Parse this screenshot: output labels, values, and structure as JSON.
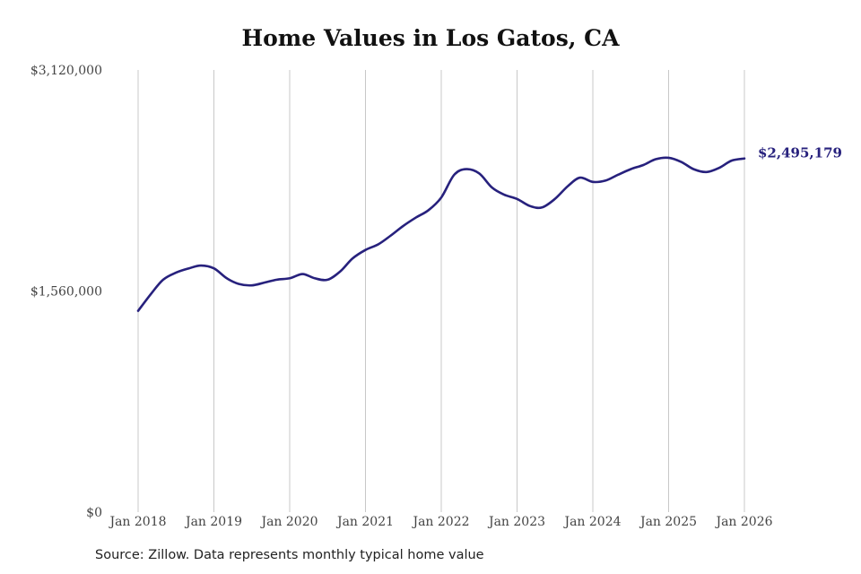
{
  "chart_data": {
    "type": "line",
    "title": "Home Values in Los Gatos, CA",
    "xlabel": "",
    "ylabel": "",
    "ylim": [
      0,
      3120000
    ],
    "yticks": [
      {
        "value": 0,
        "label": "$0"
      },
      {
        "value": 1560000,
        "label": "$1,560,000"
      },
      {
        "value": 3120000,
        "label": "$3,120,000"
      }
    ],
    "xticks": [
      {
        "value": 2018,
        "label": "Jan 2018"
      },
      {
        "value": 2019,
        "label": "Jan 2019"
      },
      {
        "value": 2020,
        "label": "Jan 2020"
      },
      {
        "value": 2021,
        "label": "Jan 2021"
      },
      {
        "value": 2022,
        "label": "Jan 2022"
      },
      {
        "value": 2023,
        "label": "Jan 2023"
      },
      {
        "value": 2024,
        "label": "Jan 2024"
      },
      {
        "value": 2025,
        "label": "Jan 2025"
      },
      {
        "value": 2026,
        "label": "Jan 2026"
      }
    ],
    "xlim": [
      2018,
      2026
    ],
    "grid": "vertical",
    "line_color": "#27217d",
    "end_label": "$2,495,179",
    "series": [
      {
        "x": [
          2018.0,
          2018.17,
          2018.33,
          2018.5,
          2018.67,
          2018.83,
          2019.0,
          2019.17,
          2019.33,
          2019.5,
          2019.67,
          2019.83,
          2020.0,
          2020.17,
          2020.33,
          2020.5,
          2020.67,
          2020.83,
          2021.0,
          2021.17,
          2021.33,
          2021.5,
          2021.67,
          2021.83,
          2022.0,
          2022.17,
          2022.33,
          2022.5,
          2022.67,
          2022.83,
          2023.0,
          2023.17,
          2023.33,
          2023.5,
          2023.67,
          2023.83,
          2024.0,
          2024.17,
          2024.33,
          2024.5,
          2024.67,
          2024.83,
          2025.0,
          2025.17,
          2025.33,
          2025.5,
          2025.67,
          2025.83,
          2026.0
        ],
        "values": [
          1420000,
          1540000,
          1640000,
          1690000,
          1720000,
          1740000,
          1720000,
          1650000,
          1610000,
          1600000,
          1620000,
          1640000,
          1650000,
          1680000,
          1650000,
          1640000,
          1700000,
          1790000,
          1850000,
          1890000,
          1950000,
          2020000,
          2080000,
          2130000,
          2220000,
          2380000,
          2420000,
          2390000,
          2290000,
          2240000,
          2210000,
          2160000,
          2150000,
          2210000,
          2300000,
          2360000,
          2330000,
          2340000,
          2380000,
          2420000,
          2450000,
          2490000,
          2500000,
          2470000,
          2420000,
          2400000,
          2430000,
          2480000,
          2495179
        ]
      }
    ]
  },
  "source_text": "Source: Zillow. Data represents monthly typical home value"
}
